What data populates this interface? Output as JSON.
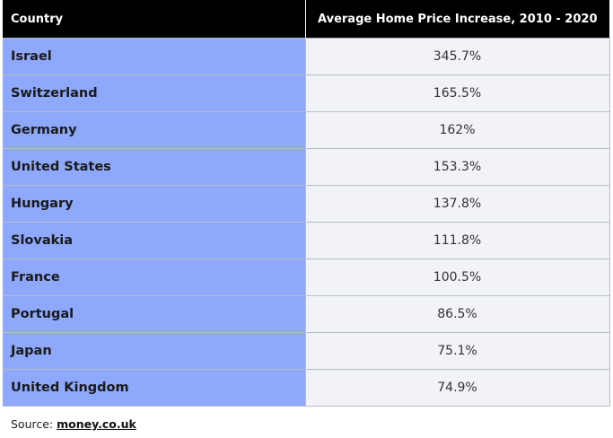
{
  "chart_data": {
    "type": "table",
    "columns": [
      "Country",
      "Average Home Price Increase, 2010 - 2020"
    ],
    "rows": [
      {
        "country": "Israel",
        "value": "345.7%"
      },
      {
        "country": "Switzerland",
        "value": "165.5%"
      },
      {
        "country": "Germany",
        "value": "162%"
      },
      {
        "country": "United States",
        "value": "153.3%"
      },
      {
        "country": "Hungary",
        "value": "137.8%"
      },
      {
        "country": "Slovakia",
        "value": "111.8%"
      },
      {
        "country": "France",
        "value": "100.5%"
      },
      {
        "country": "Portugal",
        "value": "86.5%"
      },
      {
        "country": "Japan",
        "value": "75.1%"
      },
      {
        "country": "United Kingdom",
        "value": "74.9%"
      }
    ]
  },
  "source": {
    "label": "Source: ",
    "link_text": "money.co.uk"
  },
  "colors": {
    "header_bg": "#000000",
    "country_cell_bg": "#8ea8fb",
    "value_cell_bg": "#f1f3f8"
  }
}
